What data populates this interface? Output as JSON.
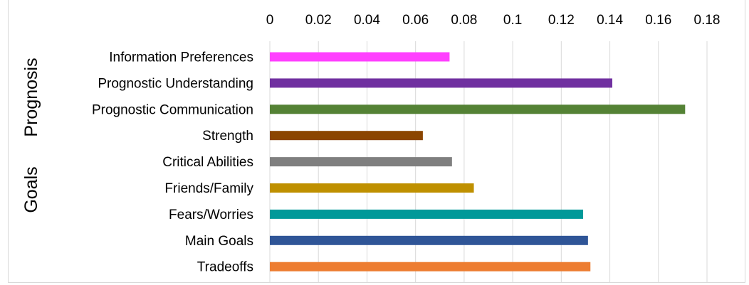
{
  "chart_data": {
    "type": "bar",
    "orientation": "horizontal",
    "title": "",
    "xlabel": "",
    "ylabel": "",
    "xlim": [
      0,
      0.18
    ],
    "x_ticks": [
      "0",
      "0.02",
      "0.04",
      "0.06",
      "0.08",
      "0.1",
      "0.12",
      "0.14",
      "0.16",
      "0.18"
    ],
    "x_axis_position": "top",
    "grid": true,
    "legend": "none",
    "categories": [
      "Information Preferences",
      "Prognostic Understanding",
      "Prognostic Communication",
      "Strength",
      "Critical Abilities",
      "Friends/Family",
      "Fears/Worries",
      "Main Goals",
      "Tradeoffs"
    ],
    "values": [
      0.074,
      0.141,
      0.171,
      0.063,
      0.075,
      0.084,
      0.129,
      0.131,
      0.132
    ],
    "colors": [
      "#ff40ff",
      "#7030a0",
      "#548235",
      "#8b4500",
      "#7f7f7f",
      "#bf9000",
      "#009999",
      "#2f5597",
      "#ed7d31"
    ],
    "groups": [
      {
        "label": "Prognosis",
        "categories": [
          "Information Preferences",
          "Prognostic Understanding",
          "Prognostic Communication"
        ]
      },
      {
        "label": "Goals",
        "categories": [
          "Strength",
          "Critical Abilities",
          "Friends/Family",
          "Fears/Worries",
          "Main Goals",
          "Tradeoffs"
        ]
      }
    ]
  }
}
